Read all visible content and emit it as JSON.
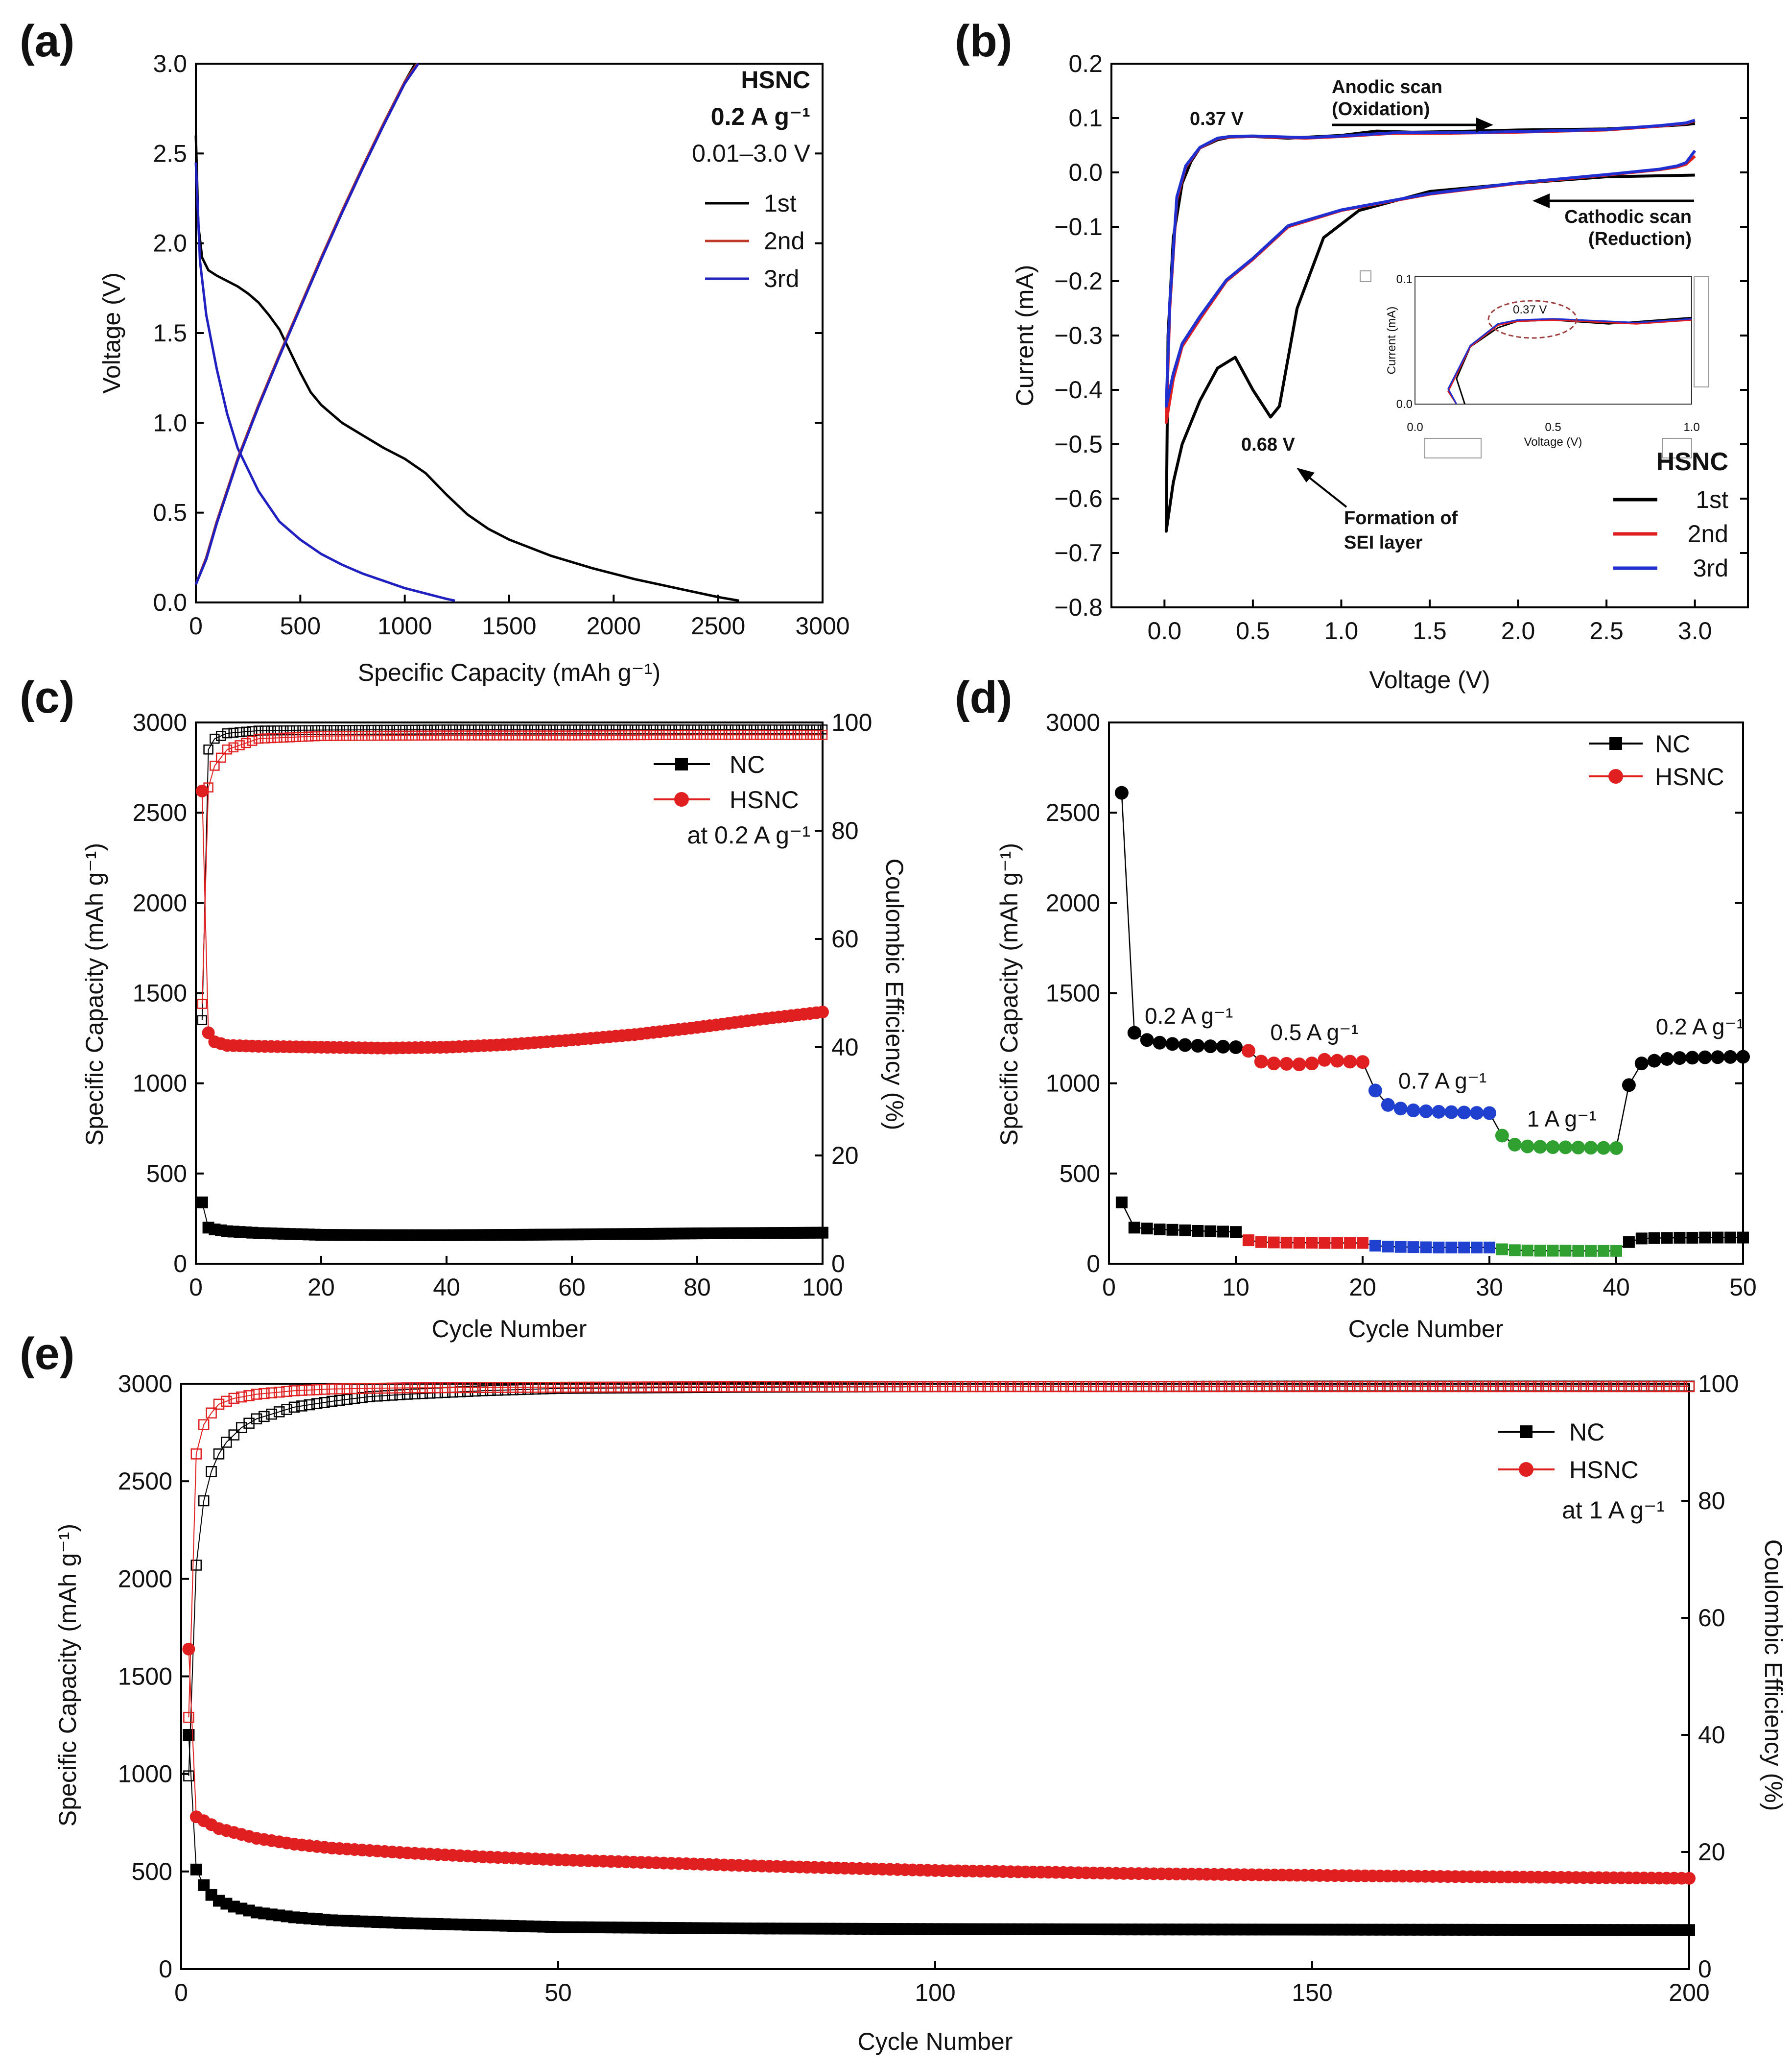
{
  "chart_data": [
    {
      "id": "a",
      "panel_label": "(a)",
      "type": "line",
      "xlabel": "Specific Capacity (mAh g⁻¹)",
      "ylabel": "Voltage (V)",
      "xlim": [
        0,
        3000
      ],
      "ylim": [
        0,
        3.0
      ],
      "xticks": [
        "0",
        "500",
        "1000",
        "1500",
        "2000",
        "2500",
        "3000"
      ],
      "yticks": [
        "0.0",
        "0.5",
        "1.0",
        "1.5",
        "2.0",
        "2.5",
        "3.0"
      ],
      "annotation": {
        "sample": "HSNC",
        "rate": "0.2 A g⁻¹",
        "window": "0.01–3.0 V"
      },
      "legend": [
        {
          "name": "1st",
          "color": "#000000"
        },
        {
          "name": "2nd",
          "color": "#c0392b"
        },
        {
          "name": "3rd",
          "color": "#2020c0"
        }
      ],
      "series": [
        {
          "name": "1st discharge",
          "color": "#000000",
          "x": [
            0,
            12,
            30,
            60,
            100,
            150,
            200,
            250,
            300,
            350,
            400,
            450,
            500,
            550,
            600,
            650,
            700,
            800,
            900,
            1000,
            1100,
            1200,
            1300,
            1400,
            1500,
            1700,
            1900,
            2100,
            2300,
            2500,
            2600
          ],
          "y": [
            2.6,
            2.1,
            1.92,
            1.85,
            1.82,
            1.79,
            1.76,
            1.72,
            1.67,
            1.6,
            1.52,
            1.4,
            1.28,
            1.17,
            1.1,
            1.05,
            1.0,
            0.93,
            0.86,
            0.8,
            0.72,
            0.6,
            0.49,
            0.41,
            0.35,
            0.26,
            0.19,
            0.13,
            0.08,
            0.03,
            0.01
          ]
        },
        {
          "name": "3rd discharge",
          "color": "#2020c0",
          "x": [
            0,
            20,
            50,
            100,
            150,
            200,
            300,
            400,
            500,
            600,
            700,
            800,
            900,
            1000,
            1100,
            1200,
            1240
          ],
          "y": [
            2.45,
            1.9,
            1.6,
            1.3,
            1.05,
            0.86,
            0.62,
            0.45,
            0.35,
            0.27,
            0.21,
            0.16,
            0.12,
            0.08,
            0.05,
            0.02,
            0.01
          ]
        },
        {
          "name": "1st charge",
          "color": "#000000",
          "x": [
            0,
            50,
            100,
            200,
            300,
            400,
            500,
            600,
            700,
            800,
            900,
            1000,
            1050
          ],
          "y": [
            0.1,
            0.25,
            0.45,
            0.8,
            1.1,
            1.38,
            1.65,
            1.92,
            2.18,
            2.43,
            2.67,
            2.9,
            3.0
          ]
        },
        {
          "name": "2nd charge",
          "color": "#c0392b",
          "x": [
            0,
            50,
            100,
            200,
            300,
            400,
            500,
            600,
            700,
            800,
            900,
            1000,
            1060
          ],
          "y": [
            0.1,
            0.25,
            0.45,
            0.8,
            1.1,
            1.38,
            1.65,
            1.92,
            2.18,
            2.43,
            2.67,
            2.9,
            3.0
          ]
        },
        {
          "name": "3rd charge",
          "color": "#2020c0",
          "x": [
            0,
            50,
            100,
            200,
            300,
            400,
            500,
            600,
            700,
            800,
            900,
            1000,
            1065
          ],
          "y": [
            0.1,
            0.24,
            0.44,
            0.79,
            1.09,
            1.37,
            1.64,
            1.91,
            2.17,
            2.42,
            2.66,
            2.89,
            3.0
          ]
        }
      ]
    },
    {
      "id": "b",
      "panel_label": "(b)",
      "type": "line",
      "xlabel": "Voltage (V)",
      "ylabel": "Current (mA)",
      "xlim": [
        -0.3,
        3.3
      ],
      "ylim": [
        -0.8,
        0.2
      ],
      "xticks": [
        "0.0",
        "0.5",
        "1.0",
        "1.5",
        "2.0",
        "2.5",
        "3.0"
      ],
      "yticks": [
        "0.2",
        "0.1",
        "0.0",
        "−0.1",
        "−0.2",
        "−0.3",
        "−0.4",
        "−0.5",
        "−0.6",
        "−0.7",
        "−0.8"
      ],
      "annotations": {
        "peak_low": "0.37 V",
        "peak_sei": "0.68 V",
        "anodic_1": "Anodic scan",
        "anodic_2": "(Oxidation)",
        "cathodic_1": "Cathodic scan",
        "cathodic_2": "(Reduction)",
        "sei_1": "Formation of",
        "sei_2": "SEI layer"
      },
      "legend_title": "HSNC",
      "legend": [
        {
          "name": "1st",
          "color": "#000000"
        },
        {
          "name": "2nd",
          "color": "#e02020"
        },
        {
          "name": "3rd",
          "color": "#2030d0"
        }
      ],
      "series": [
        {
          "name": "1st",
          "color": "#000000",
          "x": [
            3.0,
            2.5,
            2.0,
            1.5,
            1.1,
            0.9,
            0.75,
            0.65,
            0.6,
            0.5,
            0.4,
            0.3,
            0.2,
            0.1,
            0.05,
            0.01,
            0.02,
            0.05,
            0.1,
            0.15,
            0.2,
            0.3,
            0.37,
            0.5,
            0.7,
            1.0,
            1.2,
            1.4,
            1.6,
            2.0,
            2.5,
            2.8,
            2.95,
            3.0
          ],
          "y": [
            -0.005,
            -0.008,
            -0.02,
            -0.035,
            -0.07,
            -0.12,
            -0.25,
            -0.43,
            -0.45,
            -0.4,
            -0.34,
            -0.36,
            -0.42,
            -0.5,
            -0.57,
            -0.66,
            -0.3,
            -0.12,
            -0.02,
            0.02,
            0.045,
            0.06,
            0.065,
            0.066,
            0.063,
            0.068,
            0.076,
            0.074,
            0.075,
            0.078,
            0.08,
            0.085,
            0.088,
            0.09
          ]
        },
        {
          "name": "2nd",
          "color": "#e02020",
          "x": [
            3.0,
            2.95,
            2.9,
            2.8,
            2.5,
            2.0,
            1.5,
            1.0,
            0.7,
            0.5,
            0.35,
            0.2,
            0.1,
            0.05,
            0.01,
            0.03,
            0.07,
            0.12,
            0.2,
            0.3,
            0.37,
            0.5,
            0.8,
            1.0,
            1.3,
            1.6,
            2.0,
            2.5,
            2.8,
            2.95,
            3.0
          ],
          "y": [
            0.03,
            0.015,
            0.01,
            0.005,
            -0.005,
            -0.02,
            -0.04,
            -0.07,
            -0.1,
            -0.16,
            -0.2,
            -0.27,
            -0.32,
            -0.38,
            -0.46,
            -0.25,
            -0.05,
            0.01,
            0.045,
            0.062,
            0.065,
            0.066,
            0.063,
            0.066,
            0.072,
            0.072,
            0.074,
            0.078,
            0.085,
            0.09,
            0.095
          ]
        },
        {
          "name": "3rd",
          "color": "#2030d0",
          "x": [
            3.0,
            2.95,
            2.9,
            2.8,
            2.5,
            2.0,
            1.5,
            1.0,
            0.7,
            0.5,
            0.35,
            0.2,
            0.1,
            0.05,
            0.01,
            0.03,
            0.07,
            0.12,
            0.2,
            0.3,
            0.37,
            0.5,
            0.8,
            1.0,
            1.3,
            1.6,
            2.0,
            2.5,
            2.8,
            2.95,
            3.0
          ],
          "y": [
            0.04,
            0.018,
            0.012,
            0.006,
            -0.004,
            -0.019,
            -0.039,
            -0.069,
            -0.098,
            -0.158,
            -0.198,
            -0.265,
            -0.315,
            -0.37,
            -0.43,
            -0.24,
            -0.045,
            0.012,
            0.046,
            0.063,
            0.066,
            0.067,
            0.064,
            0.067,
            0.073,
            0.073,
            0.075,
            0.079,
            0.086,
            0.091,
            0.096
          ]
        }
      ],
      "inset": {
        "xlabel": "Voltage (V)",
        "ylabel": "Current (mA)",
        "xlim": [
          0.0,
          1.0
        ],
        "ylim": [
          0.0,
          0.1
        ],
        "xticks": [
          "0.0",
          "0.5",
          "1.0"
        ],
        "yticks": [
          "0.0",
          "0.1"
        ],
        "annotation": "0.37 V"
      }
    },
    {
      "id": "c",
      "panel_label": "(c)",
      "type": "scatter",
      "xlabel": "Cycle Number",
      "ylabel": "Specific Capacity (mAh g⁻¹)",
      "y2label": "Coulombic Efficiency (%)",
      "xlim": [
        0,
        100
      ],
      "ylim": [
        0,
        3000
      ],
      "y2lim": [
        0,
        100
      ],
      "xticks": [
        "0",
        "20",
        "40",
        "60",
        "80",
        "100"
      ],
      "yticks": [
        "0",
        "500",
        "1000",
        "1500",
        "2000",
        "2500",
        "3000"
      ],
      "y2ticks": [
        "0",
        "20",
        "40",
        "60",
        "80",
        "100"
      ],
      "legend": [
        {
          "name": "NC",
          "color": "#000000",
          "marker": "square"
        },
        {
          "name": "HSNC",
          "color": "#e02020",
          "marker": "circle"
        }
      ],
      "rate_note": "at 0.2 A g⁻¹",
      "capacity": {
        "NC": {
          "x": [
            1,
            2,
            3,
            5,
            10,
            20,
            30,
            40,
            50,
            60,
            70,
            80,
            90,
            100
          ],
          "y": [
            340,
            200,
            190,
            180,
            170,
            160,
            158,
            158,
            160,
            162,
            165,
            168,
            170,
            172
          ]
        },
        "HSNC": {
          "x": [
            1,
            2,
            3,
            5,
            10,
            20,
            30,
            40,
            50,
            60,
            70,
            80,
            90,
            100
          ],
          "y": [
            2620,
            1280,
            1230,
            1210,
            1205,
            1200,
            1195,
            1200,
            1215,
            1240,
            1270,
            1310,
            1355,
            1395
          ]
        }
      },
      "efficiency": {
        "NC": {
          "x": [
            1,
            2,
            3,
            5,
            10,
            20,
            40,
            60,
            80,
            100
          ],
          "y": [
            45,
            95,
            97,
            98,
            98.5,
            98.6,
            98.7,
            98.7,
            98.7,
            98.7
          ]
        },
        "HSNC": {
          "x": [
            1,
            2,
            3,
            5,
            10,
            20,
            40,
            60,
            80,
            100
          ],
          "y": [
            48,
            88,
            92,
            95,
            97,
            97.5,
            97.6,
            97.6,
            97.7,
            97.7
          ]
        }
      }
    },
    {
      "id": "d",
      "panel_label": "(d)",
      "type": "scatter",
      "xlabel": "Cycle Number",
      "ylabel": "Specific Capacity (mAh g⁻¹)",
      "xlim": [
        0,
        50
      ],
      "ylim": [
        0,
        3000
      ],
      "xticks": [
        "0",
        "10",
        "20",
        "30",
        "40",
        "50"
      ],
      "yticks": [
        "0",
        "500",
        "1000",
        "1500",
        "2000",
        "2500",
        "3000"
      ],
      "legend": [
        {
          "name": "NC",
          "color": "#000000",
          "marker": "square"
        },
        {
          "name": "HSNC",
          "color": "#e02020",
          "marker": "circle"
        }
      ],
      "rate_labels": [
        {
          "text": "0.2 A g⁻¹",
          "cycle": 6.3,
          "capacity": 1330
        },
        {
          "text": "0.5 A g⁻¹",
          "cycle": 16.2,
          "capacity": 1240
        },
        {
          "text": "0.7 A g⁻¹",
          "cycle": 26.3,
          "capacity": 970
        },
        {
          "text": "1 A g⁻¹",
          "cycle": 35.7,
          "capacity": 760
        },
        {
          "text": "0.2 A g⁻¹",
          "cycle": 46.6,
          "capacity": 1270
        }
      ],
      "segment_colors": [
        "#000000",
        "#e02020",
        "#2040d0",
        "#30a030",
        "#000000"
      ],
      "HSNC": [
        2610,
        1280,
        1240,
        1225,
        1218,
        1212,
        1208,
        1205,
        1203,
        1200,
        1180,
        1120,
        1110,
        1108,
        1105,
        1110,
        1130,
        1125,
        1120,
        1118,
        960,
        880,
        860,
        850,
        845,
        842,
        840,
        838,
        836,
        835,
        710,
        660,
        650,
        648,
        646,
        645,
        644,
        643,
        642,
        641,
        990,
        1110,
        1125,
        1135,
        1140,
        1142,
        1144,
        1145,
        1146,
        1147
      ],
      "NC": [
        340,
        200,
        195,
        190,
        188,
        185,
        182,
        180,
        178,
        176,
        130,
        120,
        118,
        117,
        116,
        116,
        115,
        115,
        115,
        115,
        100,
        95,
        93,
        92,
        91,
        90,
        90,
        90,
        90,
        90,
        80,
        75,
        73,
        72,
        72,
        72,
        71,
        71,
        71,
        71,
        120,
        140,
        142,
        143,
        144,
        144,
        145,
        145,
        145,
        145
      ]
    },
    {
      "id": "e",
      "panel_label": "(e)",
      "type": "scatter",
      "xlabel": "Cycle Number",
      "ylabel": "Specific Capacity (mAh g⁻¹)",
      "y2label": "Coulombic Efficiency (%)",
      "xlim": [
        0,
        200
      ],
      "ylim": [
        0,
        3000
      ],
      "y2lim": [
        0,
        100
      ],
      "xticks": [
        "0",
        "50",
        "100",
        "150",
        "200"
      ],
      "yticks": [
        "0",
        "500",
        "1000",
        "1500",
        "2000",
        "2500",
        "3000"
      ],
      "y2ticks": [
        "0",
        "20",
        "40",
        "60",
        "80",
        "100"
      ],
      "legend": [
        {
          "name": "NC",
          "color": "#000000",
          "marker": "square"
        },
        {
          "name": "HSNC",
          "color": "#e02020",
          "marker": "circle"
        }
      ],
      "rate_note": "at 1 A g⁻¹",
      "capacity": {
        "NC": {
          "x": [
            1,
            2,
            3,
            4,
            5,
            7,
            10,
            15,
            20,
            30,
            40,
            50,
            75,
            100,
            125,
            150,
            175,
            200
          ],
          "y": [
            1200,
            510,
            430,
            380,
            350,
            320,
            290,
            265,
            250,
            235,
            225,
            215,
            208,
            205,
            203,
            202,
            201,
            200
          ]
        },
        "HSNC": {
          "x": [
            1,
            2,
            3,
            5,
            10,
            15,
            20,
            30,
            40,
            50,
            75,
            100,
            125,
            150,
            175,
            200
          ],
          "y": [
            1640,
            780,
            760,
            720,
            670,
            640,
            620,
            595,
            575,
            560,
            530,
            505,
            490,
            480,
            472,
            465
          ]
        }
      },
      "efficiency": {
        "NC": {
          "x": [
            1,
            2,
            3,
            4,
            5,
            6,
            8,
            10,
            15,
            20,
            25,
            30,
            40,
            50,
            75,
            100,
            150,
            200
          ],
          "y": [
            33,
            69,
            80,
            85,
            88,
            90,
            92.5,
            94,
            96,
            97,
            97.8,
            98.2,
            98.8,
            99.2,
            99.4,
            99.5,
            99.6,
            99.6
          ]
        },
        "HSNC": {
          "x": [
            1,
            2,
            3,
            4,
            5,
            7,
            10,
            15,
            20,
            30,
            50,
            75,
            100,
            150,
            200
          ],
          "y": [
            43,
            88,
            93,
            95,
            96.5,
            97.5,
            98.2,
            98.8,
            99.1,
            99.3,
            99.4,
            99.5,
            99.5,
            99.5,
            99.5
          ]
        }
      }
    }
  ]
}
